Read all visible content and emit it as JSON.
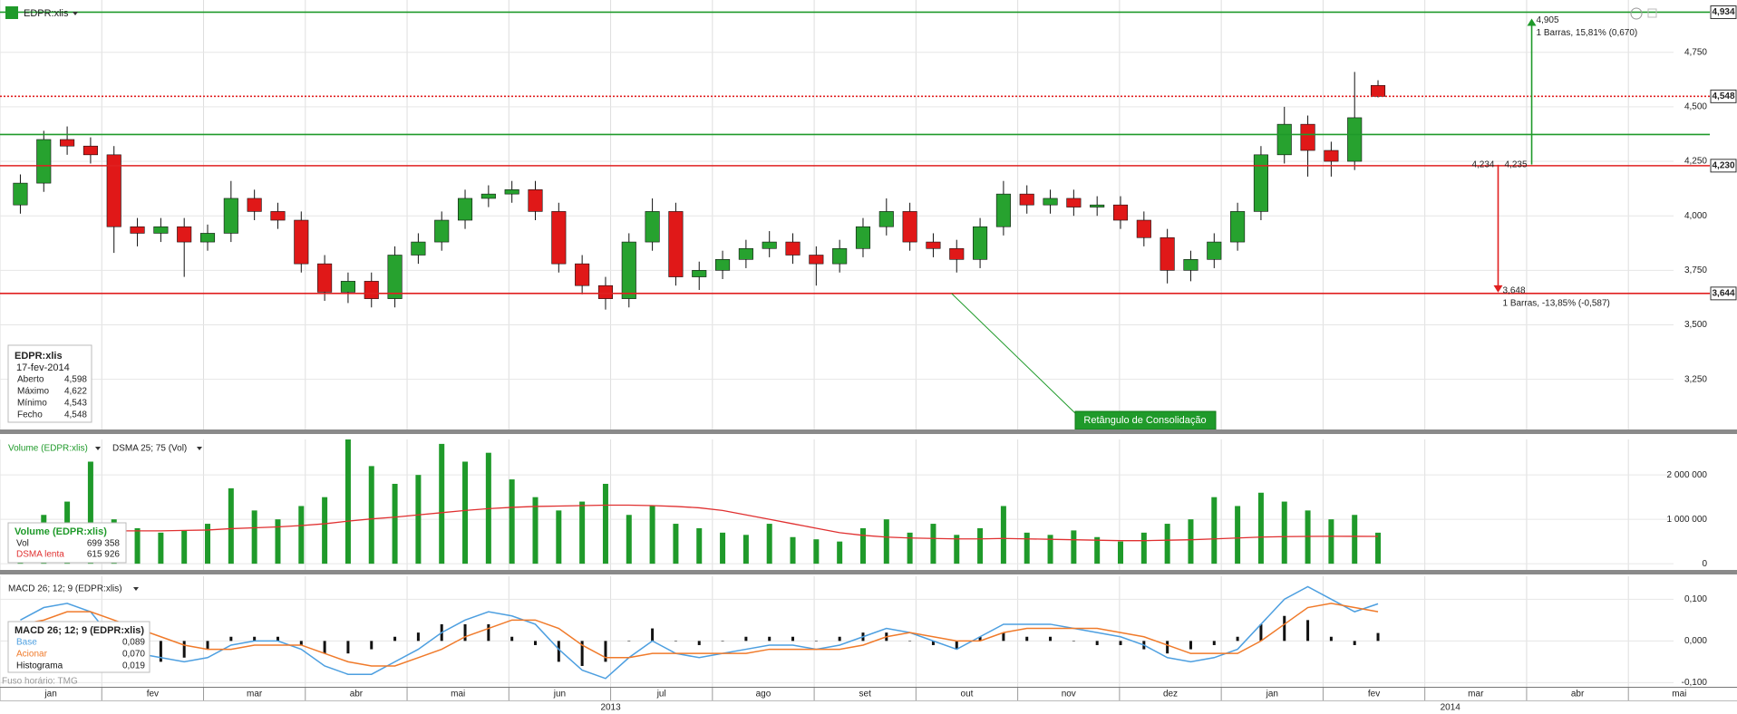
{
  "chart_data": [
    {
      "type": "candlestick",
      "title": "EDPR:xlis",
      "x": [
        0.2,
        0.43,
        0.66,
        0.89,
        1.12,
        1.35,
        1.58,
        1.81,
        2.04,
        2.27,
        2.5,
        2.73,
        2.96,
        3.19,
        3.42,
        3.65,
        3.88,
        4.11,
        4.34,
        4.57,
        4.8,
        5.03,
        5.26,
        5.49,
        5.72,
        5.95,
        6.18,
        6.41,
        6.64,
        6.87,
        7.1,
        7.33,
        7.56,
        7.79,
        8.02,
        8.25,
        8.48,
        8.71,
        8.94,
        9.17,
        9.4,
        9.63,
        9.86,
        10.09,
        10.32,
        10.55,
        10.78,
        11.01,
        11.24,
        11.47,
        11.7,
        11.93,
        12.16,
        12.39,
        12.62,
        12.85,
        13.08,
        13.31,
        13.54
      ],
      "open": [
        4.05,
        4.15,
        4.35,
        4.32,
        4.28,
        3.95,
        3.92,
        3.95,
        3.88,
        3.92,
        4.08,
        4.02,
        3.98,
        3.78,
        3.65,
        3.7,
        3.62,
        3.82,
        3.88,
        3.98,
        4.08,
        4.1,
        4.12,
        4.02,
        3.78,
        3.68,
        3.62,
        3.88,
        4.02,
        3.72,
        3.75,
        3.8,
        3.85,
        3.88,
        3.82,
        3.78,
        3.85,
        3.95,
        4.02,
        3.88,
        3.85,
        3.8,
        3.95,
        4.1,
        4.05,
        4.08,
        4.04,
        4.05,
        3.98,
        3.9,
        3.75,
        3.8,
        3.88,
        4.02,
        4.28,
        4.42,
        4.3,
        4.25,
        4.598
      ],
      "high": [
        4.19,
        4.39,
        4.41,
        4.36,
        4.32,
        3.99,
        3.99,
        3.99,
        3.96,
        4.16,
        4.12,
        4.06,
        4.02,
        3.82,
        3.74,
        3.74,
        3.86,
        3.92,
        4.02,
        4.12,
        4.14,
        4.16,
        4.16,
        4.06,
        3.82,
        3.72,
        3.92,
        4.08,
        4.06,
        3.79,
        3.84,
        3.89,
        3.93,
        3.92,
        3.86,
        3.89,
        3.99,
        4.08,
        4.06,
        3.92,
        3.89,
        3.99,
        4.16,
        4.14,
        4.12,
        4.12,
        4.09,
        4.09,
        4.02,
        3.94,
        3.84,
        3.92,
        4.06,
        4.32,
        4.5,
        4.46,
        4.34,
        4.66,
        4.622
      ],
      "low": [
        4.01,
        4.11,
        4.28,
        4.24,
        3.83,
        3.86,
        3.88,
        3.72,
        3.84,
        3.88,
        3.98,
        3.94,
        3.74,
        3.61,
        3.6,
        3.58,
        3.58,
        3.78,
        3.84,
        3.94,
        4.04,
        4.06,
        3.98,
        3.74,
        3.64,
        3.57,
        3.58,
        3.84,
        3.68,
        3.66,
        3.71,
        3.76,
        3.81,
        3.78,
        3.68,
        3.74,
        3.81,
        3.91,
        3.84,
        3.81,
        3.74,
        3.76,
        3.91,
        4.01,
        4.01,
        4.0,
        4.0,
        3.94,
        3.86,
        3.69,
        3.7,
        3.76,
        3.84,
        3.98,
        4.24,
        4.18,
        4.18,
        4.21,
        4.543
      ],
      "close": [
        4.15,
        4.35,
        4.32,
        4.28,
        3.95,
        3.92,
        3.95,
        3.88,
        3.92,
        4.08,
        4.02,
        3.98,
        3.78,
        3.65,
        3.7,
        3.62,
        3.82,
        3.88,
        3.98,
        4.08,
        4.1,
        4.12,
        4.02,
        3.78,
        3.68,
        3.62,
        3.88,
        4.02,
        3.72,
        3.75,
        3.8,
        3.85,
        3.88,
        3.82,
        3.78,
        3.85,
        3.95,
        4.02,
        3.88,
        3.85,
        3.8,
        3.95,
        4.1,
        4.05,
        4.08,
        4.04,
        4.05,
        3.98,
        3.9,
        3.75,
        3.8,
        3.88,
        4.02,
        4.28,
        4.42,
        4.3,
        4.25,
        4.45,
        4.548
      ],
      "up_color": "#27a22f",
      "down_color": "#e01818",
      "wick_color": "#111111",
      "xlim": [
        0,
        16.8
      ],
      "xticks": [
        {
          "value": 0.5,
          "label": "jan"
        },
        {
          "value": 1.5,
          "label": "fev"
        },
        {
          "value": 2.5,
          "label": "mar"
        },
        {
          "value": 3.5,
          "label": "abr"
        },
        {
          "value": 4.5,
          "label": "mai"
        },
        {
          "value": 5.5,
          "label": "jun"
        },
        {
          "value": 6.5,
          "label": "jul"
        },
        {
          "value": 7.5,
          "label": "ago"
        },
        {
          "value": 8.5,
          "label": "set"
        },
        {
          "value": 9.5,
          "label": "out"
        },
        {
          "value": 10.5,
          "label": "nov"
        },
        {
          "value": 11.5,
          "label": "dez"
        },
        {
          "value": 12.5,
          "label": "jan"
        },
        {
          "value": 13.5,
          "label": "fev"
        },
        {
          "value": 14.5,
          "label": "mar"
        },
        {
          "value": 15.5,
          "label": "abr"
        },
        {
          "value": 16.5,
          "label": "mai"
        }
      ],
      "year_ticks": [
        {
          "value": 6,
          "label": "2013"
        },
        {
          "value": 14.25,
          "label": "2014"
        }
      ],
      "ylim": [
        3.02,
        4.99
      ],
      "yticks": [
        {
          "value": 3.25,
          "label": "3,250"
        },
        {
          "value": 3.5,
          "label": "3,500"
        },
        {
          "value": 3.75,
          "label": "3,750"
        },
        {
          "value": 4,
          "label": "4,000"
        },
        {
          "value": 4.25,
          "label": "4,250"
        },
        {
          "value": 4.5,
          "label": "4,500"
        },
        {
          "value": 4.75,
          "label": "4,750"
        }
      ],
      "grid": true,
      "levels": [
        {
          "value": 4.934,
          "label": "4,934",
          "color": "#1f9a2a",
          "style": "solid"
        },
        {
          "value": 4.548,
          "label": "4,548",
          "color": "#e02020",
          "style": "dotted"
        },
        {
          "value": 4.373,
          "color": "#1f9a2a",
          "style": "solid"
        },
        {
          "value": 4.23,
          "label": "4,230",
          "color": "#e02020",
          "style": "solid"
        },
        {
          "value": 3.644,
          "label": "3,644",
          "color": "#e02020",
          "style": "solid"
        }
      ],
      "measures": [
        {
          "x": 15.05,
          "from": 4.235,
          "to": 4.905,
          "from_label": "4,235",
          "to_label": "4,905",
          "note": "1 Barras, 15,81% (0,670)",
          "color": "#1f9a2a"
        },
        {
          "x": 14.72,
          "from": 4.234,
          "to": 3.648,
          "from_label": "4,234",
          "to_label": "3,648",
          "note": "1 Barras, -13,85% (-0,587)",
          "color": "#e02020"
        }
      ],
      "callout": {
        "text": "Retângulo de Consolidação",
        "x": 9.35,
        "y": 3.644,
        "color": "#1f9a2a"
      },
      "info": {
        "date": "17-fev-2014",
        "rows": [
          [
            "Aberto",
            "4,598"
          ],
          [
            "Máximo",
            "4,622"
          ],
          [
            "Mínimo",
            "4,543"
          ],
          [
            "Fecho",
            "4,548"
          ]
        ]
      },
      "timezone": "Fuso horário: TMG"
    },
    {
      "type": "bar",
      "title": "Volume (EDPR:xlis)",
      "indicator": "DSMA 25; 75 (Vol)",
      "series": [
        {
          "name": "Vol",
          "color": "#1f9a2a",
          "last_label": "699 358",
          "values": [
            900000,
            1100000,
            1400000,
            2300000,
            1000000,
            800000,
            700000,
            750000,
            900000,
            1700000,
            1200000,
            1000000,
            1300000,
            1500000,
            2800000,
            2200000,
            1800000,
            2000000,
            2700000,
            2300000,
            2500000,
            1900000,
            1500000,
            1200000,
            1400000,
            1800000,
            1100000,
            1300000,
            900000,
            800000,
            700000,
            650000,
            900000,
            600000,
            550000,
            500000,
            800000,
            1000000,
            700000,
            900000,
            650000,
            800000,
            1300000,
            700000,
            650000,
            750000,
            600000,
            500000,
            700000,
            900000,
            1000000,
            1500000,
            1300000,
            1600000,
            1400000,
            1200000,
            1000000,
            1100000,
            699358
          ]
        },
        {
          "name": "DSMA lenta",
          "color": "#e03030",
          "last_label": "615 926",
          "values": [
            650000,
            660000,
            680000,
            720000,
            740000,
            740000,
            740000,
            750000,
            760000,
            790000,
            810000,
            830000,
            860000,
            900000,
            960000,
            1010000,
            1050000,
            1100000,
            1150000,
            1200000,
            1240000,
            1270000,
            1290000,
            1300000,
            1310000,
            1320000,
            1320000,
            1310000,
            1290000,
            1260000,
            1200000,
            1100000,
            1000000,
            900000,
            800000,
            700000,
            640000,
            600000,
            580000,
            570000,
            560000,
            560000,
            570000,
            560000,
            550000,
            540000,
            530000,
            520000,
            520000,
            530000,
            540000,
            560000,
            580000,
            600000,
            610000,
            615000,
            618000,
            617000,
            615926
          ]
        }
      ],
      "ylim": [
        -140000,
        2800000
      ],
      "yticks": [
        0,
        {
          "value": 1000000,
          "label": "1 000 000"
        },
        {
          "value": 2000000,
          "label": "2 000 000"
        }
      ]
    },
    {
      "type": "macd",
      "title": "MACD 26; 12; 9 (EDPR:xlis)",
      "series": [
        {
          "name": "Base",
          "color": "#4d9fe0",
          "last_label": "0,089",
          "values": [
            0.05,
            0.08,
            0.09,
            0.07,
            0.0,
            -0.03,
            -0.04,
            -0.05,
            -0.04,
            -0.01,
            0.0,
            0.0,
            -0.02,
            -0.06,
            -0.08,
            -0.08,
            -0.05,
            -0.02,
            0.02,
            0.05,
            0.07,
            0.06,
            0.04,
            -0.02,
            -0.07,
            -0.09,
            -0.04,
            0.0,
            -0.03,
            -0.04,
            -0.03,
            -0.02,
            -0.01,
            -0.01,
            -0.02,
            -0.01,
            0.01,
            0.03,
            0.02,
            0.0,
            -0.02,
            0.01,
            0.04,
            0.04,
            0.04,
            0.03,
            0.02,
            0.01,
            -0.01,
            -0.04,
            -0.05,
            -0.04,
            -0.02,
            0.04,
            0.1,
            0.13,
            0.1,
            0.07,
            0.089
          ]
        },
        {
          "name": "Acionar",
          "color": "#f07a2a",
          "last_label": "0,070",
          "values": [
            0.04,
            0.05,
            0.07,
            0.07,
            0.05,
            0.03,
            0.01,
            -0.01,
            -0.02,
            -0.02,
            -0.01,
            -0.01,
            -0.01,
            -0.03,
            -0.05,
            -0.06,
            -0.06,
            -0.04,
            -0.02,
            0.01,
            0.03,
            0.05,
            0.05,
            0.03,
            -0.01,
            -0.04,
            -0.04,
            -0.03,
            -0.03,
            -0.03,
            -0.03,
            -0.03,
            -0.02,
            -0.02,
            -0.02,
            -0.02,
            -0.01,
            0.01,
            0.02,
            0.01,
            0.0,
            0.0,
            0.02,
            0.03,
            0.03,
            0.03,
            0.03,
            0.02,
            0.01,
            -0.01,
            -0.03,
            -0.03,
            -0.03,
            0.0,
            0.04,
            0.08,
            0.09,
            0.08,
            0.07
          ]
        },
        {
          "name": "Histograma",
          "color": "#111111",
          "last_label": "0,019",
          "values": [
            0.01,
            0.03,
            0.02,
            0,
            -0.05,
            -0.06,
            -0.05,
            -0.04,
            -0.02,
            0.01,
            0.01,
            0.01,
            -0.01,
            -0.03,
            -0.03,
            -0.02,
            0.01,
            0.02,
            0.04,
            0.04,
            0.04,
            0.01,
            -0.01,
            -0.05,
            -0.06,
            -0.05,
            0,
            0.03,
            0,
            -0.01,
            0,
            0.01,
            0.01,
            0.01,
            0,
            0.01,
            0.02,
            0.02,
            0,
            -0.01,
            -0.02,
            0.01,
            0.02,
            0.01,
            0.01,
            0,
            -0.01,
            -0.01,
            -0.02,
            -0.03,
            -0.02,
            -0.01,
            0.01,
            0.04,
            0.06,
            0.05,
            0.01,
            -0.01,
            0.019
          ]
        }
      ],
      "ylim": [
        -0.11,
        0.155
      ],
      "yticks": [
        {
          "value": -0.1,
          "label": "-0,100"
        },
        {
          "value": 0,
          "label": "0,000"
        },
        {
          "value": 0.1,
          "label": "0,100"
        }
      ]
    }
  ]
}
